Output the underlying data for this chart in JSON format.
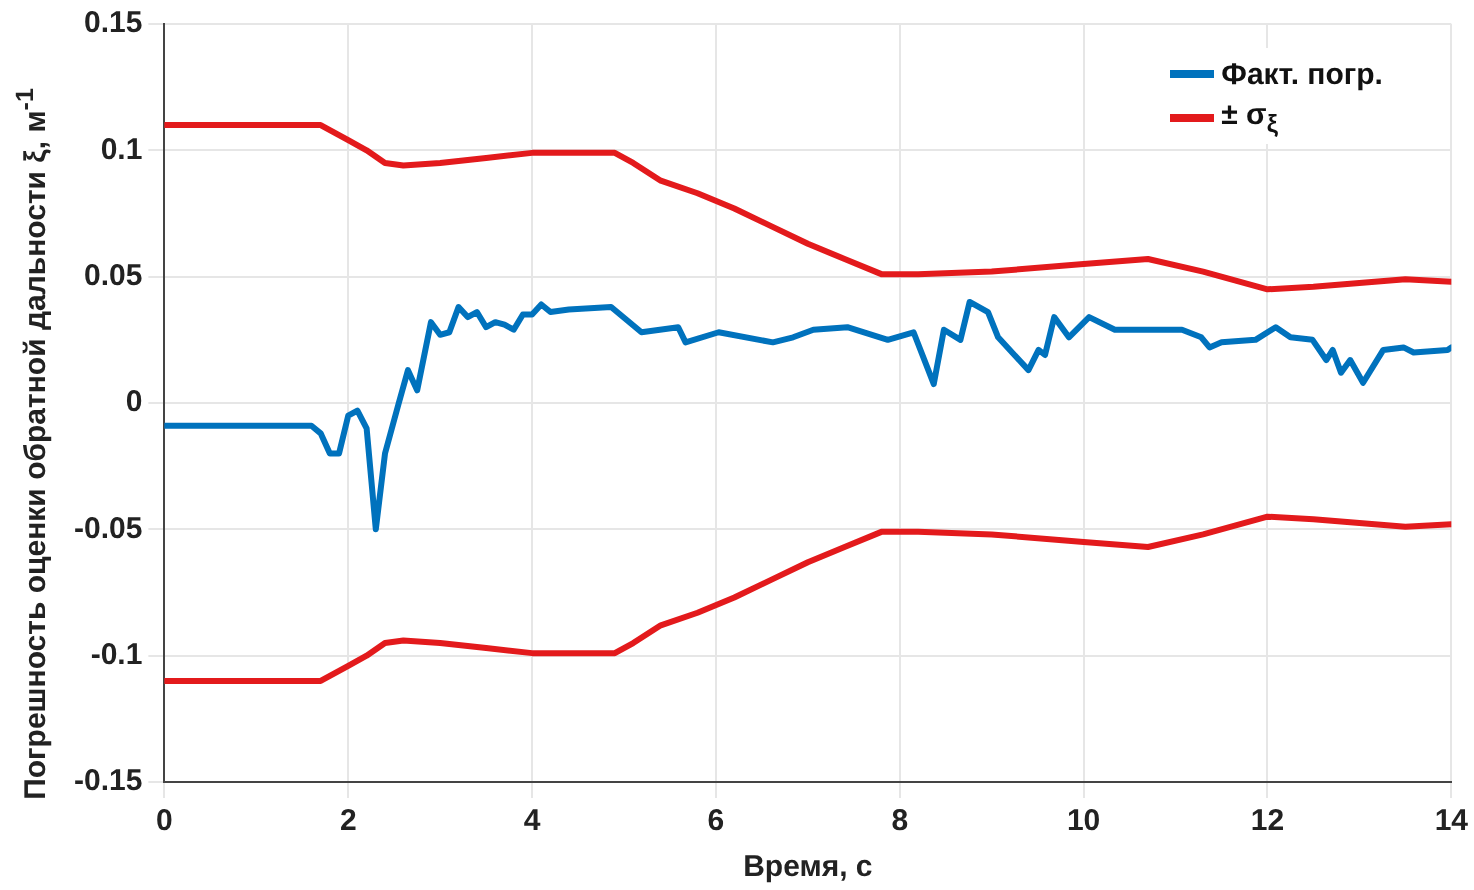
{
  "chart_data": {
    "type": "line",
    "xlabel": "Время, с",
    "ylabel": "Погрешность оценки обратной дальности ξ, м$^{-1}$",
    "xlim": [
      0,
      14
    ],
    "xticks": [
      0,
      2,
      4,
      6,
      8,
      10,
      12,
      14
    ],
    "ylim": [
      -0.15,
      0.15
    ],
    "yticks": [
      -0.15,
      -0.1,
      -0.05,
      0,
      0.05,
      0.1,
      0.15
    ],
    "grid": true,
    "legend": "top right",
    "marker": "none",
    "line_style": "solid",
    "series": [
      {
        "name": "Факт. погр.",
        "color": "#0072bd",
        "x": [
          0,
          1.6,
          1.7,
          1.8,
          1.9,
          2.0,
          2.1,
          2.2,
          2.3,
          2.4,
          2.55,
          2.65,
          2.75,
          2.9,
          3.0,
          3.1,
          3.2,
          3.3,
          3.4,
          3.5,
          3.6,
          3.7,
          3.8,
          3.9,
          4.0,
          4.1,
          4.2,
          4.4,
          4.86,
          5.19,
          5.59,
          5.67,
          6.03,
          6.62,
          6.84,
          7.06,
          7.43,
          7.87,
          8.15,
          8.37,
          8.48,
          8.66,
          8.76,
          8.96,
          9.07,
          9.4,
          9.51,
          9.58,
          9.68,
          9.84,
          10.06,
          10.34,
          11.07,
          11.28,
          11.37,
          11.5,
          11.87,
          12.09,
          12.25,
          12.49,
          12.64,
          12.71,
          12.8,
          12.9,
          13.04,
          13.26,
          13.48,
          13.59,
          13.96,
          14
        ],
        "values": [
          -0.009,
          -0.009,
          -0.012,
          -0.02,
          -0.02,
          -0.005,
          -0.003,
          -0.01,
          -0.05,
          -0.02,
          0,
          0.013,
          0.005,
          0.032,
          0.027,
          0.028,
          0.038,
          0.034,
          0.036,
          0.03,
          0.032,
          0.031,
          0.029,
          0.035,
          0.035,
          0.039,
          0.036,
          0.037,
          0.038,
          0.028,
          0.03,
          0.024,
          0.028,
          0.024,
          0.026,
          0.029,
          0.03,
          0.025,
          0.028,
          0.0075,
          0.029,
          0.025,
          0.04,
          0.036,
          0.026,
          0.013,
          0.021,
          0.019,
          0.034,
          0.026,
          0.034,
          0.029,
          0.029,
          0.026,
          0.022,
          0.024,
          0.025,
          0.03,
          0.026,
          0.025,
          0.017,
          0.021,
          0.012,
          0.017,
          0.008,
          0.021,
          0.022,
          0.02,
          0.021,
          0.022
        ]
      },
      {
        "name": "± σ$_{ξ}$",
        "color": "#e31a1c",
        "x": [
          0,
          1.7,
          2.0,
          2.2,
          2.4,
          2.6,
          3,
          3.5,
          4,
          4.9,
          5.1,
          5.4,
          5.8,
          6.2,
          6.6,
          7,
          7.4,
          7.8,
          8.2,
          9,
          10,
          10.7,
          11.3,
          12,
          12.5,
          13.5,
          14
        ],
        "values": [
          0.11,
          0.11,
          0.104,
          0.1,
          0.095,
          0.094,
          0.095,
          0.097,
          0.099,
          0.099,
          0.095,
          0.088,
          0.083,
          0.077,
          0.07,
          0.063,
          0.057,
          0.051,
          0.051,
          0.052,
          0.055,
          0.057,
          0.052,
          0.045,
          0.046,
          0.049,
          0.048
        ]
      },
      {
        "color": "#e31a1c",
        "x": [
          0,
          1.7,
          2.0,
          2.2,
          2.4,
          2.6,
          3,
          3.5,
          4,
          4.9,
          5.1,
          5.4,
          5.8,
          6.2,
          6.6,
          7,
          7.4,
          7.8,
          8.2,
          9,
          10,
          10.7,
          11.3,
          12,
          12.5,
          13.5,
          14
        ],
        "values": [
          -0.11,
          -0.11,
          -0.104,
          -0.1,
          -0.095,
          -0.094,
          -0.095,
          -0.097,
          -0.099,
          -0.099,
          -0.095,
          -0.088,
          -0.083,
          -0.077,
          -0.07,
          -0.063,
          -0.057,
          -0.051,
          -0.051,
          -0.052,
          -0.055,
          -0.057,
          -0.052,
          -0.045,
          -0.046,
          -0.049,
          -0.048
        ]
      }
    ]
  }
}
